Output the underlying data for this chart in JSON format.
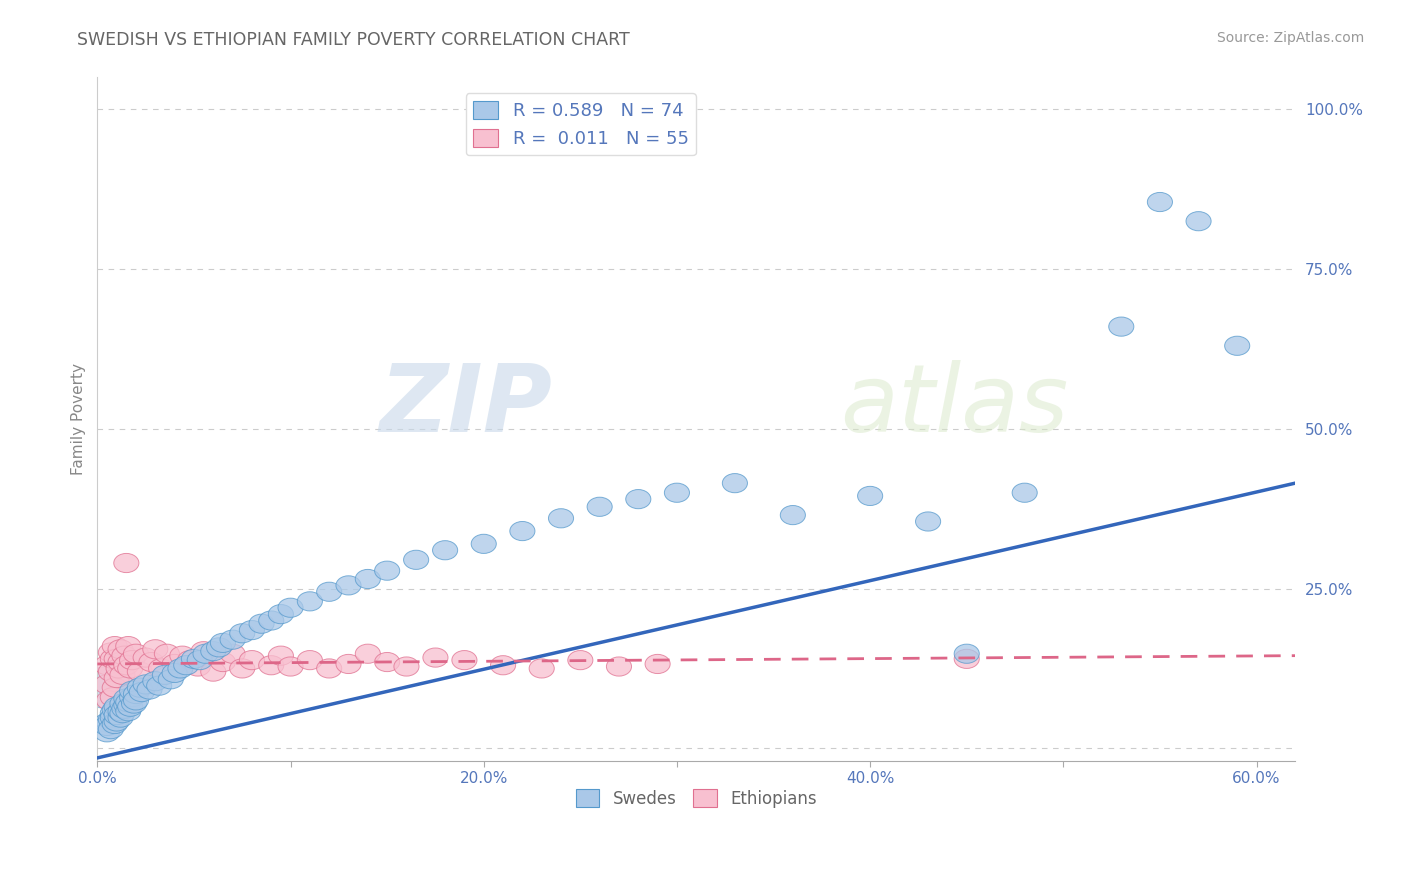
{
  "title": "SWEDISH VS ETHIOPIAN FAMILY POVERTY CORRELATION CHART",
  "source_text": "Source: ZipAtlas.com",
  "ylabel": "Family Poverty",
  "watermark_zip": "ZIP",
  "watermark_atlas": "atlas",
  "xlim": [
    0.0,
    0.62
  ],
  "ylim": [
    -0.02,
    1.05
  ],
  "yticks": [
    0.0,
    0.25,
    0.5,
    0.75,
    1.0
  ],
  "ytick_labels": [
    "",
    "25.0%",
    "50.0%",
    "75.0%",
    "100.0%"
  ],
  "xtick_vals": [
    0.0,
    0.1,
    0.2,
    0.3,
    0.4,
    0.5,
    0.6
  ],
  "xtick_labels": [
    "0.0%",
    "",
    "20.0%",
    "",
    "40.0%",
    "",
    "60.0%"
  ],
  "blue_color": "#aac8e8",
  "blue_edge_color": "#5599cc",
  "pink_color": "#f8c0d0",
  "pink_edge_color": "#e07090",
  "blue_line_color": "#3366bb",
  "pink_line_color": "#dd6688",
  "title_color": "#666666",
  "grid_color": "#cccccc",
  "text_color": "#5577bb",
  "swedish_x": [
    0.005,
    0.005,
    0.005,
    0.007,
    0.007,
    0.008,
    0.008,
    0.009,
    0.009,
    0.01,
    0.01,
    0.01,
    0.012,
    0.012,
    0.013,
    0.013,
    0.014,
    0.015,
    0.015,
    0.016,
    0.016,
    0.017,
    0.018,
    0.018,
    0.019,
    0.02,
    0.02,
    0.022,
    0.023,
    0.025,
    0.027,
    0.03,
    0.032,
    0.035,
    0.038,
    0.04,
    0.043,
    0.046,
    0.05,
    0.053,
    0.056,
    0.06,
    0.063,
    0.065,
    0.07,
    0.075,
    0.08,
    0.085,
    0.09,
    0.095,
    0.1,
    0.11,
    0.12,
    0.13,
    0.14,
    0.15,
    0.165,
    0.18,
    0.2,
    0.22,
    0.24,
    0.26,
    0.28,
    0.3,
    0.33,
    0.36,
    0.4,
    0.43,
    0.45,
    0.48,
    0.53,
    0.55,
    0.57,
    0.59
  ],
  "swedish_y": [
    0.04,
    0.025,
    0.035,
    0.045,
    0.03,
    0.055,
    0.048,
    0.038,
    0.06,
    0.042,
    0.065,
    0.052,
    0.048,
    0.058,
    0.055,
    0.07,
    0.062,
    0.068,
    0.078,
    0.058,
    0.072,
    0.065,
    0.08,
    0.09,
    0.07,
    0.085,
    0.075,
    0.095,
    0.088,
    0.1,
    0.092,
    0.105,
    0.098,
    0.115,
    0.108,
    0.118,
    0.125,
    0.13,
    0.14,
    0.138,
    0.148,
    0.152,
    0.158,
    0.165,
    0.17,
    0.18,
    0.185,
    0.195,
    0.2,
    0.21,
    0.22,
    0.23,
    0.245,
    0.255,
    0.265,
    0.278,
    0.295,
    0.31,
    0.32,
    0.34,
    0.36,
    0.378,
    0.39,
    0.4,
    0.415,
    0.365,
    0.395,
    0.355,
    0.148,
    0.4,
    0.66,
    0.855,
    0.825,
    0.63
  ],
  "ethiopian_x": [
    0.005,
    0.005,
    0.006,
    0.007,
    0.007,
    0.008,
    0.008,
    0.009,
    0.009,
    0.01,
    0.01,
    0.011,
    0.012,
    0.012,
    0.013,
    0.014,
    0.015,
    0.016,
    0.017,
    0.018,
    0.02,
    0.022,
    0.025,
    0.028,
    0.03,
    0.033,
    0.036,
    0.04,
    0.044,
    0.048,
    0.052,
    0.055,
    0.06,
    0.065,
    0.07,
    0.075,
    0.08,
    0.09,
    0.095,
    0.1,
    0.11,
    0.12,
    0.13,
    0.14,
    0.15,
    0.16,
    0.175,
    0.19,
    0.21,
    0.23,
    0.25,
    0.27,
    0.29,
    0.015,
    0.45
  ],
  "ethiopian_y": [
    0.1,
    0.13,
    0.075,
    0.12,
    0.15,
    0.08,
    0.14,
    0.095,
    0.16,
    0.11,
    0.14,
    0.125,
    0.135,
    0.155,
    0.115,
    0.145,
    0.13,
    0.16,
    0.125,
    0.138,
    0.148,
    0.12,
    0.142,
    0.135,
    0.155,
    0.125,
    0.148,
    0.132,
    0.145,
    0.138,
    0.128,
    0.152,
    0.12,
    0.135,
    0.148,
    0.125,
    0.138,
    0.13,
    0.145,
    0.128,
    0.138,
    0.125,
    0.132,
    0.148,
    0.135,
    0.128,
    0.142,
    0.138,
    0.13,
    0.125,
    0.138,
    0.128,
    0.132,
    0.29,
    0.14
  ],
  "sw_line_x": [
    0.0,
    0.62
  ],
  "sw_line_y": [
    -0.015,
    0.415
  ],
  "eth_line_x": [
    0.0,
    0.62
  ],
  "eth_line_y": [
    0.132,
    0.145
  ]
}
